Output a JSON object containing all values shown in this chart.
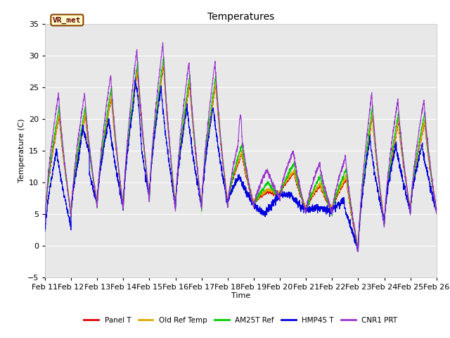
{
  "title": "Temperatures",
  "xlabel": "Time",
  "ylabel": "Temperature (C)",
  "ylim": [
    -5,
    35
  ],
  "xlim": [
    0,
    15
  ],
  "x_tick_labels": [
    "Feb 11",
    "Feb 12",
    "Feb 13",
    "Feb 14",
    "Feb 15",
    "Feb 16",
    "Feb 17",
    "Feb 18",
    "Feb 19",
    "Feb 20",
    "Feb 21",
    "Feb 22",
    "Feb 23",
    "Feb 24",
    "Feb 25",
    "Feb 26"
  ],
  "background_color": "#e8e8e8",
  "figure_color": "#ffffff",
  "grid_color": "#ffffff",
  "series_colors": {
    "Panel T": "#dd0000",
    "Old Ref Temp": "#ddaa00",
    "AM25T Ref": "#00cc00",
    "HMP45 T": "#0000dd",
    "CNR1 PRT": "#9933cc"
  },
  "legend_label_box": "VR_met",
  "legend_box_bg": "#ffffcc",
  "legend_box_border": "#884400"
}
